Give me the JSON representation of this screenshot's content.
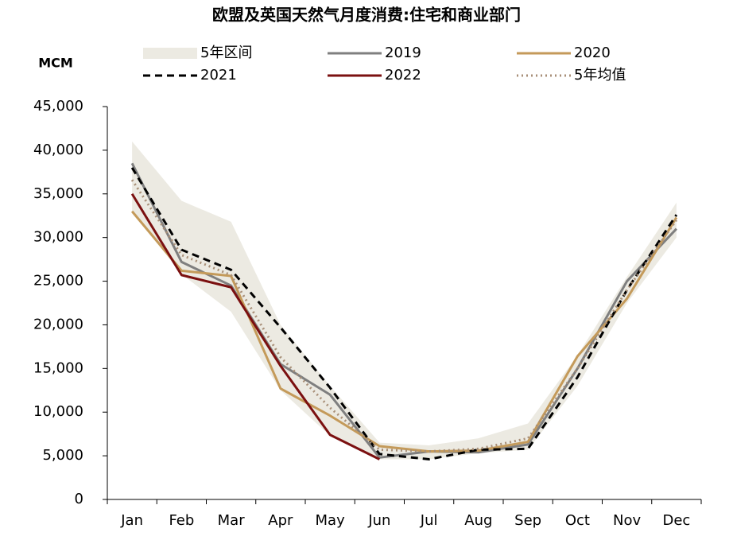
{
  "chart_data": {
    "type": "line",
    "title": "欧盟及英国天然气月度消费:住宅和商业部门",
    "y_label": "MCM",
    "categories": [
      "Jan",
      "Feb",
      "Mar",
      "Apr",
      "May",
      "Jun",
      "Jul",
      "Aug",
      "Sep",
      "Oct",
      "Nov",
      "Dec"
    ],
    "band": {
      "name": "5年区间",
      "color": "#eceae2",
      "lower": [
        33000,
        25800,
        21500,
        12500,
        7300,
        4600,
        4600,
        5300,
        5700,
        13000,
        22500,
        30000
      ],
      "upper": [
        41000,
        34200,
        31800,
        20000,
        13000,
        6500,
        6200,
        7000,
        8700,
        16500,
        25500,
        34000
      ]
    },
    "series": [
      {
        "name": "2019",
        "color": "#7f7f7f",
        "style": "solid",
        "values": [
          38500,
          27200,
          24500,
          15500,
          12000,
          4800,
          5500,
          5400,
          6300,
          15000,
          25000,
          31000
        ]
      },
      {
        "name": "2020",
        "color": "#c49a5a",
        "style": "solid",
        "values": [
          33000,
          26200,
          25600,
          12700,
          9600,
          6100,
          5500,
          5600,
          6600,
          16400,
          23000,
          32300
        ]
      },
      {
        "name": "2021",
        "color": "#000000",
        "style": "dashed",
        "values": [
          38000,
          28600,
          26300,
          19700,
          12800,
          5200,
          4600,
          5700,
          5800,
          14000,
          24000,
          32600
        ]
      },
      {
        "name": "2022",
        "color": "#7b1010",
        "style": "solid",
        "values": [
          35000,
          25700,
          24300,
          15300,
          7400,
          4600,
          null,
          null,
          null,
          null,
          null,
          null
        ]
      },
      {
        "name": "5年均值",
        "color": "#a88f78",
        "style": "dotted",
        "values": [
          36600,
          28000,
          25700,
          16300,
          10500,
          5700,
          5500,
          5800,
          7000,
          15000,
          24000,
          32000
        ]
      }
    ],
    "ylim": [
      0,
      45000
    ],
    "yticks": [
      0,
      {
        "value": 5000,
        "label": "5,000"
      },
      {
        "value": 10000,
        "label": "10,000"
      },
      {
        "value": 15000,
        "label": "15,000"
      },
      {
        "value": 20000,
        "label": "20,000"
      },
      {
        "value": 25000,
        "label": "25,000"
      },
      {
        "value": 30000,
        "label": "30,000"
      },
      {
        "value": 35000,
        "label": "35,000"
      },
      {
        "value": 40000,
        "label": "40,000"
      },
      {
        "value": 45000,
        "label": "45,000"
      }
    ],
    "grid": false
  }
}
